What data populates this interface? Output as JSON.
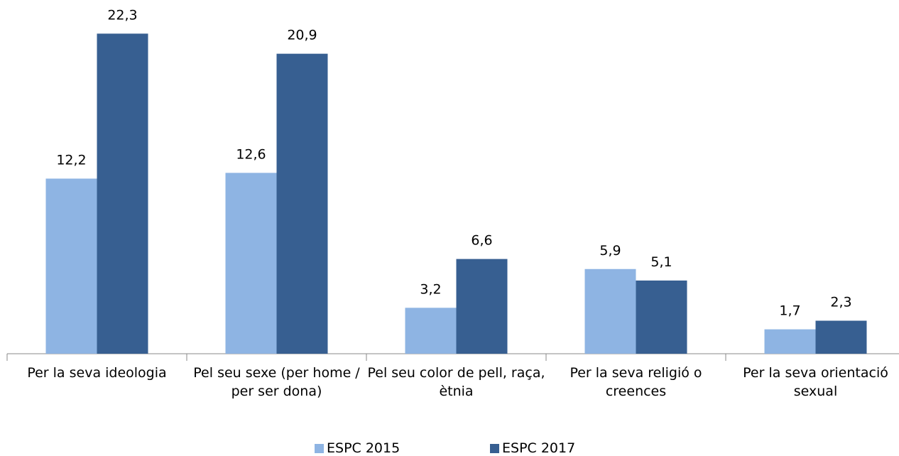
{
  "chart_data": {
    "type": "bar",
    "categories": [
      "Per la seva ideologia",
      "Pel seu sexe (per home / per ser dona)",
      "Pel seu color de pell, raça, ètnia",
      "Per la seva religió o creences",
      "Per la seva orientació sexual"
    ],
    "series": [
      {
        "name": "ESPC 2015",
        "color": "#8eb4e3",
        "values": [
          12.2,
          12.6,
          3.2,
          5.9,
          1.7
        ],
        "value_labels": [
          "12,2",
          "12,6",
          "3,2",
          "5,9",
          "1,7"
        ]
      },
      {
        "name": "ESPC 2017",
        "color": "#375f91",
        "values": [
          22.3,
          20.9,
          6.6,
          5.1,
          2.3
        ],
        "value_labels": [
          "22,3",
          "20,9",
          "6,6",
          "5,1",
          "2,3"
        ]
      }
    ],
    "ylim": [
      0,
      24
    ],
    "legend": "bottom"
  }
}
